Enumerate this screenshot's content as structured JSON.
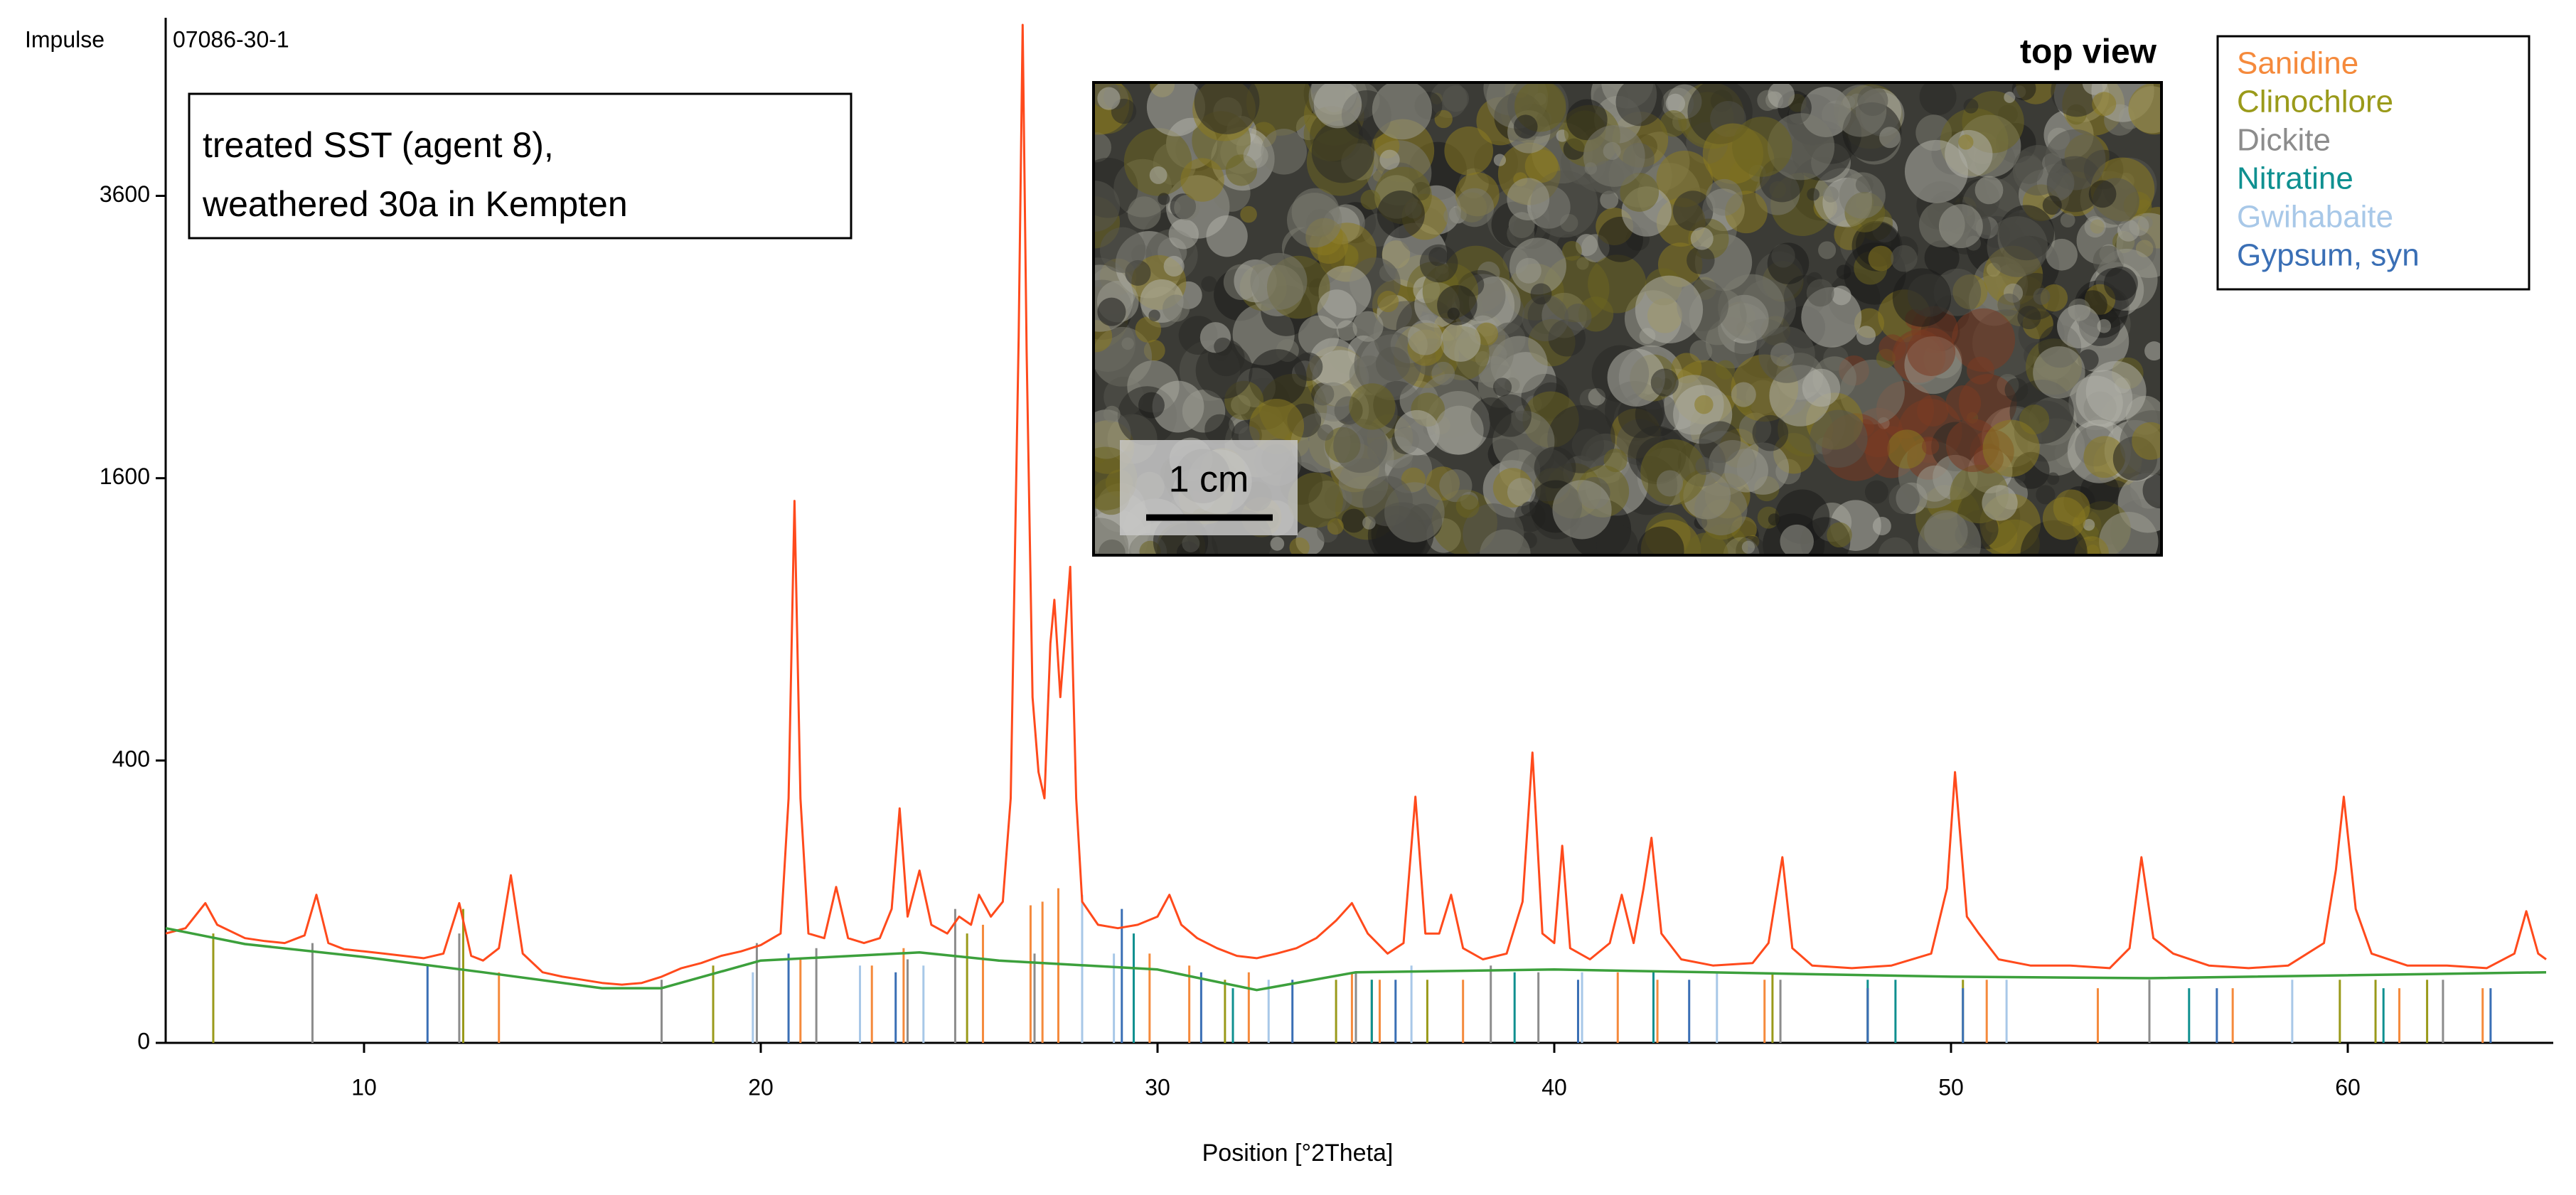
{
  "chart_data": {
    "type": "xrd",
    "title": "07086-30-1",
    "ylabel": "Impulse",
    "xlabel": "Position [°2Theta]",
    "annotation": [
      "treated SST (agent 8),",
      "weathered 30a in Kempten"
    ],
    "photo": {
      "caption": "top view",
      "scale_bar": "1 cm"
    },
    "yscale": "sqrt",
    "xlim": [
      5,
      65
    ],
    "ylim": [
      0,
      5200
    ],
    "xticks": [
      10,
      20,
      30,
      40,
      50,
      60
    ],
    "yticks": [
      0,
      400,
      1600,
      3600
    ],
    "lines": [
      {
        "color": "#ff4a1c",
        "x": [
          5.0,
          5.5,
          6.0,
          6.3,
          7.0,
          7.5,
          8.0,
          8.5,
          8.8,
          9.1,
          9.5,
          10,
          10.5,
          11,
          11.5,
          12.0,
          12.4,
          12.7,
          13.0,
          13.4,
          13.7,
          14.0,
          14.5,
          15,
          15.5,
          16,
          16.5,
          17,
          17.5,
          18,
          18.5,
          19,
          19.5,
          20,
          20.5,
          20.7,
          20.85,
          21.0,
          21.2,
          21.6,
          21.9,
          22.2,
          22.6,
          23.0,
          23.3,
          23.5,
          23.7,
          24.0,
          24.3,
          24.7,
          25.0,
          25.3,
          25.5,
          25.8,
          26.1,
          26.3,
          26.5,
          26.6,
          26.7,
          26.85,
          27.0,
          27.15,
          27.3,
          27.4,
          27.55,
          27.7,
          27.8,
          27.95,
          28.1,
          28.5,
          29,
          29.5,
          30,
          30.3,
          30.6,
          31,
          31.5,
          32,
          32.5,
          33,
          33.5,
          34,
          34.5,
          34.9,
          35.3,
          35.8,
          36.2,
          36.5,
          36.75,
          37.1,
          37.4,
          37.7,
          38.2,
          38.8,
          39.2,
          39.45,
          39.7,
          40.0,
          40.2,
          40.4,
          40.9,
          41.4,
          41.7,
          42.0,
          42.25,
          42.45,
          42.7,
          43.2,
          44,
          45,
          45.4,
          45.75,
          46.0,
          46.5,
          47.5,
          48.5,
          49.5,
          49.9,
          50.1,
          50.4,
          50.7,
          51.2,
          52,
          53,
          54,
          54.5,
          54.8,
          55.1,
          55.6,
          56.5,
          57.5,
          58.5,
          59.4,
          59.7,
          59.9,
          60.2,
          60.6,
          61.5,
          62.5,
          63.5,
          64.2,
          64.5,
          64.8,
          65
        ],
        "values": [
          60,
          66,
          98,
          70,
          55,
          52,
          50,
          58,
          110,
          50,
          44,
          42,
          40,
          38,
          36,
          40,
          98,
          38,
          34,
          45,
          141,
          40,
          25,
          22,
          20,
          18,
          17,
          18,
          22,
          28,
          32,
          38,
          42,
          48,
          60,
          300,
          1474,
          300,
          60,
          55,
          122,
          55,
          50,
          55,
          90,
          276,
          80,
          149,
          70,
          60,
          80,
          70,
          110,
          80,
          100,
          300,
          2500,
          5200,
          2400,
          600,
          368,
          300,
          800,
          985,
          600,
          900,
          1137,
          300,
          100,
          70,
          66,
          70,
          80,
          110,
          70,
          55,
          45,
          38,
          36,
          40,
          45,
          55,
          75,
          98,
          60,
          40,
          50,
          304,
          60,
          60,
          110,
          45,
          35,
          40,
          100,
          423,
          60,
          50,
          195,
          45,
          35,
          50,
          110,
          50,
          120,
          211,
          60,
          35,
          30,
          32,
          50,
          173,
          45,
          30,
          28,
          30,
          40,
          120,
          368,
          80,
          60,
          35,
          30,
          30,
          28,
          45,
          173,
          55,
          40,
          30,
          28,
          30,
          50,
          150,
          304,
          90,
          40,
          30,
          30,
          28,
          40,
          87,
          40,
          35
        ]
      },
      {
        "color": "#3ca03c",
        "x": [
          5,
          7,
          10,
          13,
          16,
          17.5,
          20,
          24,
          26,
          30,
          32.5,
          35,
          40,
          50,
          55,
          65
        ],
        "values": [
          66,
          49,
          37,
          25,
          15,
          15,
          34,
          41,
          34,
          27,
          14,
          25,
          27,
          22,
          21,
          25
        ]
      }
    ],
    "series": [
      {
        "name": "Sanidine",
        "color": "#f58a3c",
        "x": [
          13.4,
          21.0,
          22.8,
          23.6,
          25.6,
          26.8,
          27.1,
          27.5,
          29.8,
          30.8,
          32.3,
          34.9,
          35.6,
          37.7,
          41.6,
          42.6,
          45.3,
          47.9,
          50.9,
          53.7,
          57.1,
          61.3,
          63.4
        ],
        "values": [
          25,
          35,
          30,
          45,
          70,
          95,
          100,
          120,
          40,
          30,
          25,
          25,
          20,
          20,
          25,
          20,
          20,
          15,
          20,
          15,
          15,
          15,
          15
        ]
      },
      {
        "name": "Clinochlore",
        "color": "#9a9a1a",
        "x": [
          6.2,
          12.5,
          18.8,
          25.2,
          31.7,
          34.5,
          35.4,
          36.8,
          45.5,
          50.3,
          59.8,
          60.7,
          62.0
        ],
        "values": [
          60,
          90,
          30,
          60,
          20,
          20,
          20,
          20,
          25,
          20,
          20,
          20,
          20
        ]
      },
      {
        "name": "Dickite",
        "color": "#8c8c8c",
        "x": [
          8.7,
          12.4,
          17.5,
          19.9,
          21.4,
          23.7,
          24.9,
          26.9,
          35.0,
          38.4,
          39.6,
          45.7,
          55.0,
          62.4
        ],
        "values": [
          50,
          60,
          20,
          50,
          45,
          35,
          90,
          40,
          25,
          30,
          25,
          20,
          20,
          20
        ]
      },
      {
        "name": "Nitratine",
        "color": "#0f9090",
        "x": [
          29.4,
          31.9,
          35.4,
          39.0,
          42.5,
          47.9,
          48.6,
          56.0,
          60.9
        ],
        "values": [
          60,
          15,
          20,
          25,
          25,
          20,
          20,
          15,
          15
        ]
      },
      {
        "name": "Gwihabaite",
        "color": "#a8c8e8",
        "x": [
          19.8,
          22.5,
          24.1,
          28.1,
          28.9,
          32.8,
          36.4,
          40.7,
          44.1,
          51.4,
          58.6
        ],
        "values": [
          25,
          30,
          30,
          110,
          40,
          20,
          30,
          25,
          25,
          20,
          20
        ]
      },
      {
        "name": "Gypsum, syn",
        "color": "#3a6fb5",
        "x": [
          11.6,
          20.7,
          23.4,
          29.1,
          31.1,
          33.4,
          36.0,
          40.6,
          43.4,
          47.9,
          50.3,
          56.7,
          63.6
        ],
        "values": [
          30,
          40,
          25,
          90,
          25,
          20,
          20,
          20,
          20,
          15,
          15,
          15,
          15
        ]
      }
    ]
  }
}
